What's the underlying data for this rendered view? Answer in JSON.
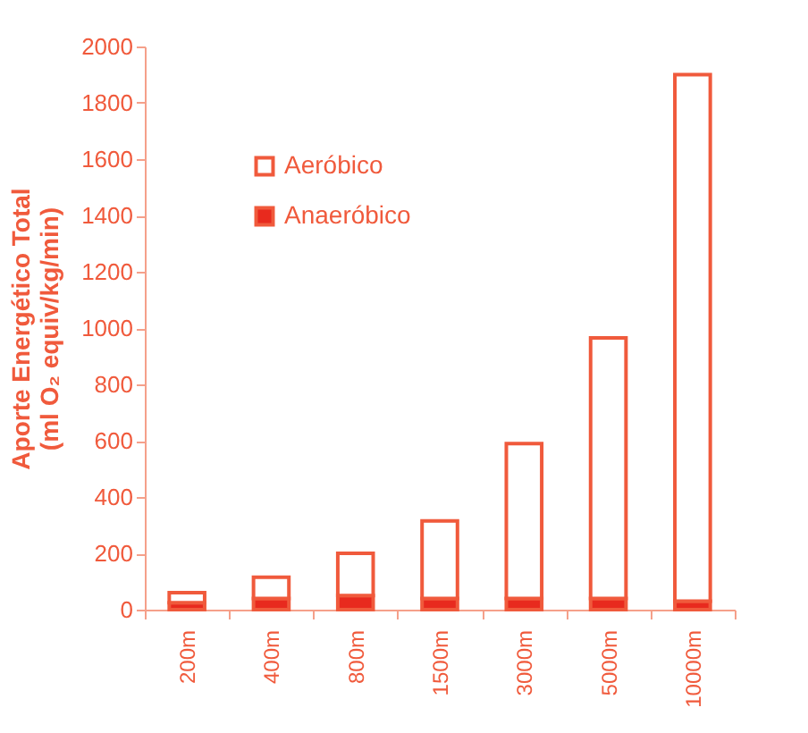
{
  "chart_data": {
    "type": "bar",
    "ylabel": "Aporte Energético Total\n(ml O₂ equiv/kg/min)",
    "categories": [
      "200m",
      "400m",
      "800m",
      "1500m",
      "3000m",
      "5000m",
      "10000m"
    ],
    "stacked": true,
    "series": [
      {
        "name": "Anaeróbico",
        "color": "#e82a1e",
        "values": [
          25,
          40,
          50,
          40,
          40,
          40,
          30
        ]
      },
      {
        "name": "Aeróbico",
        "color": "#ffffff",
        "values": [
          35,
          75,
          150,
          275,
          550,
          925,
          1870
        ]
      }
    ],
    "ylim": [
      0,
      2000
    ],
    "yticks": [
      0,
      200,
      400,
      600,
      800,
      1000,
      1200,
      1400,
      1600,
      1800,
      2000
    ],
    "grid": false,
    "legend": "top left"
  }
}
